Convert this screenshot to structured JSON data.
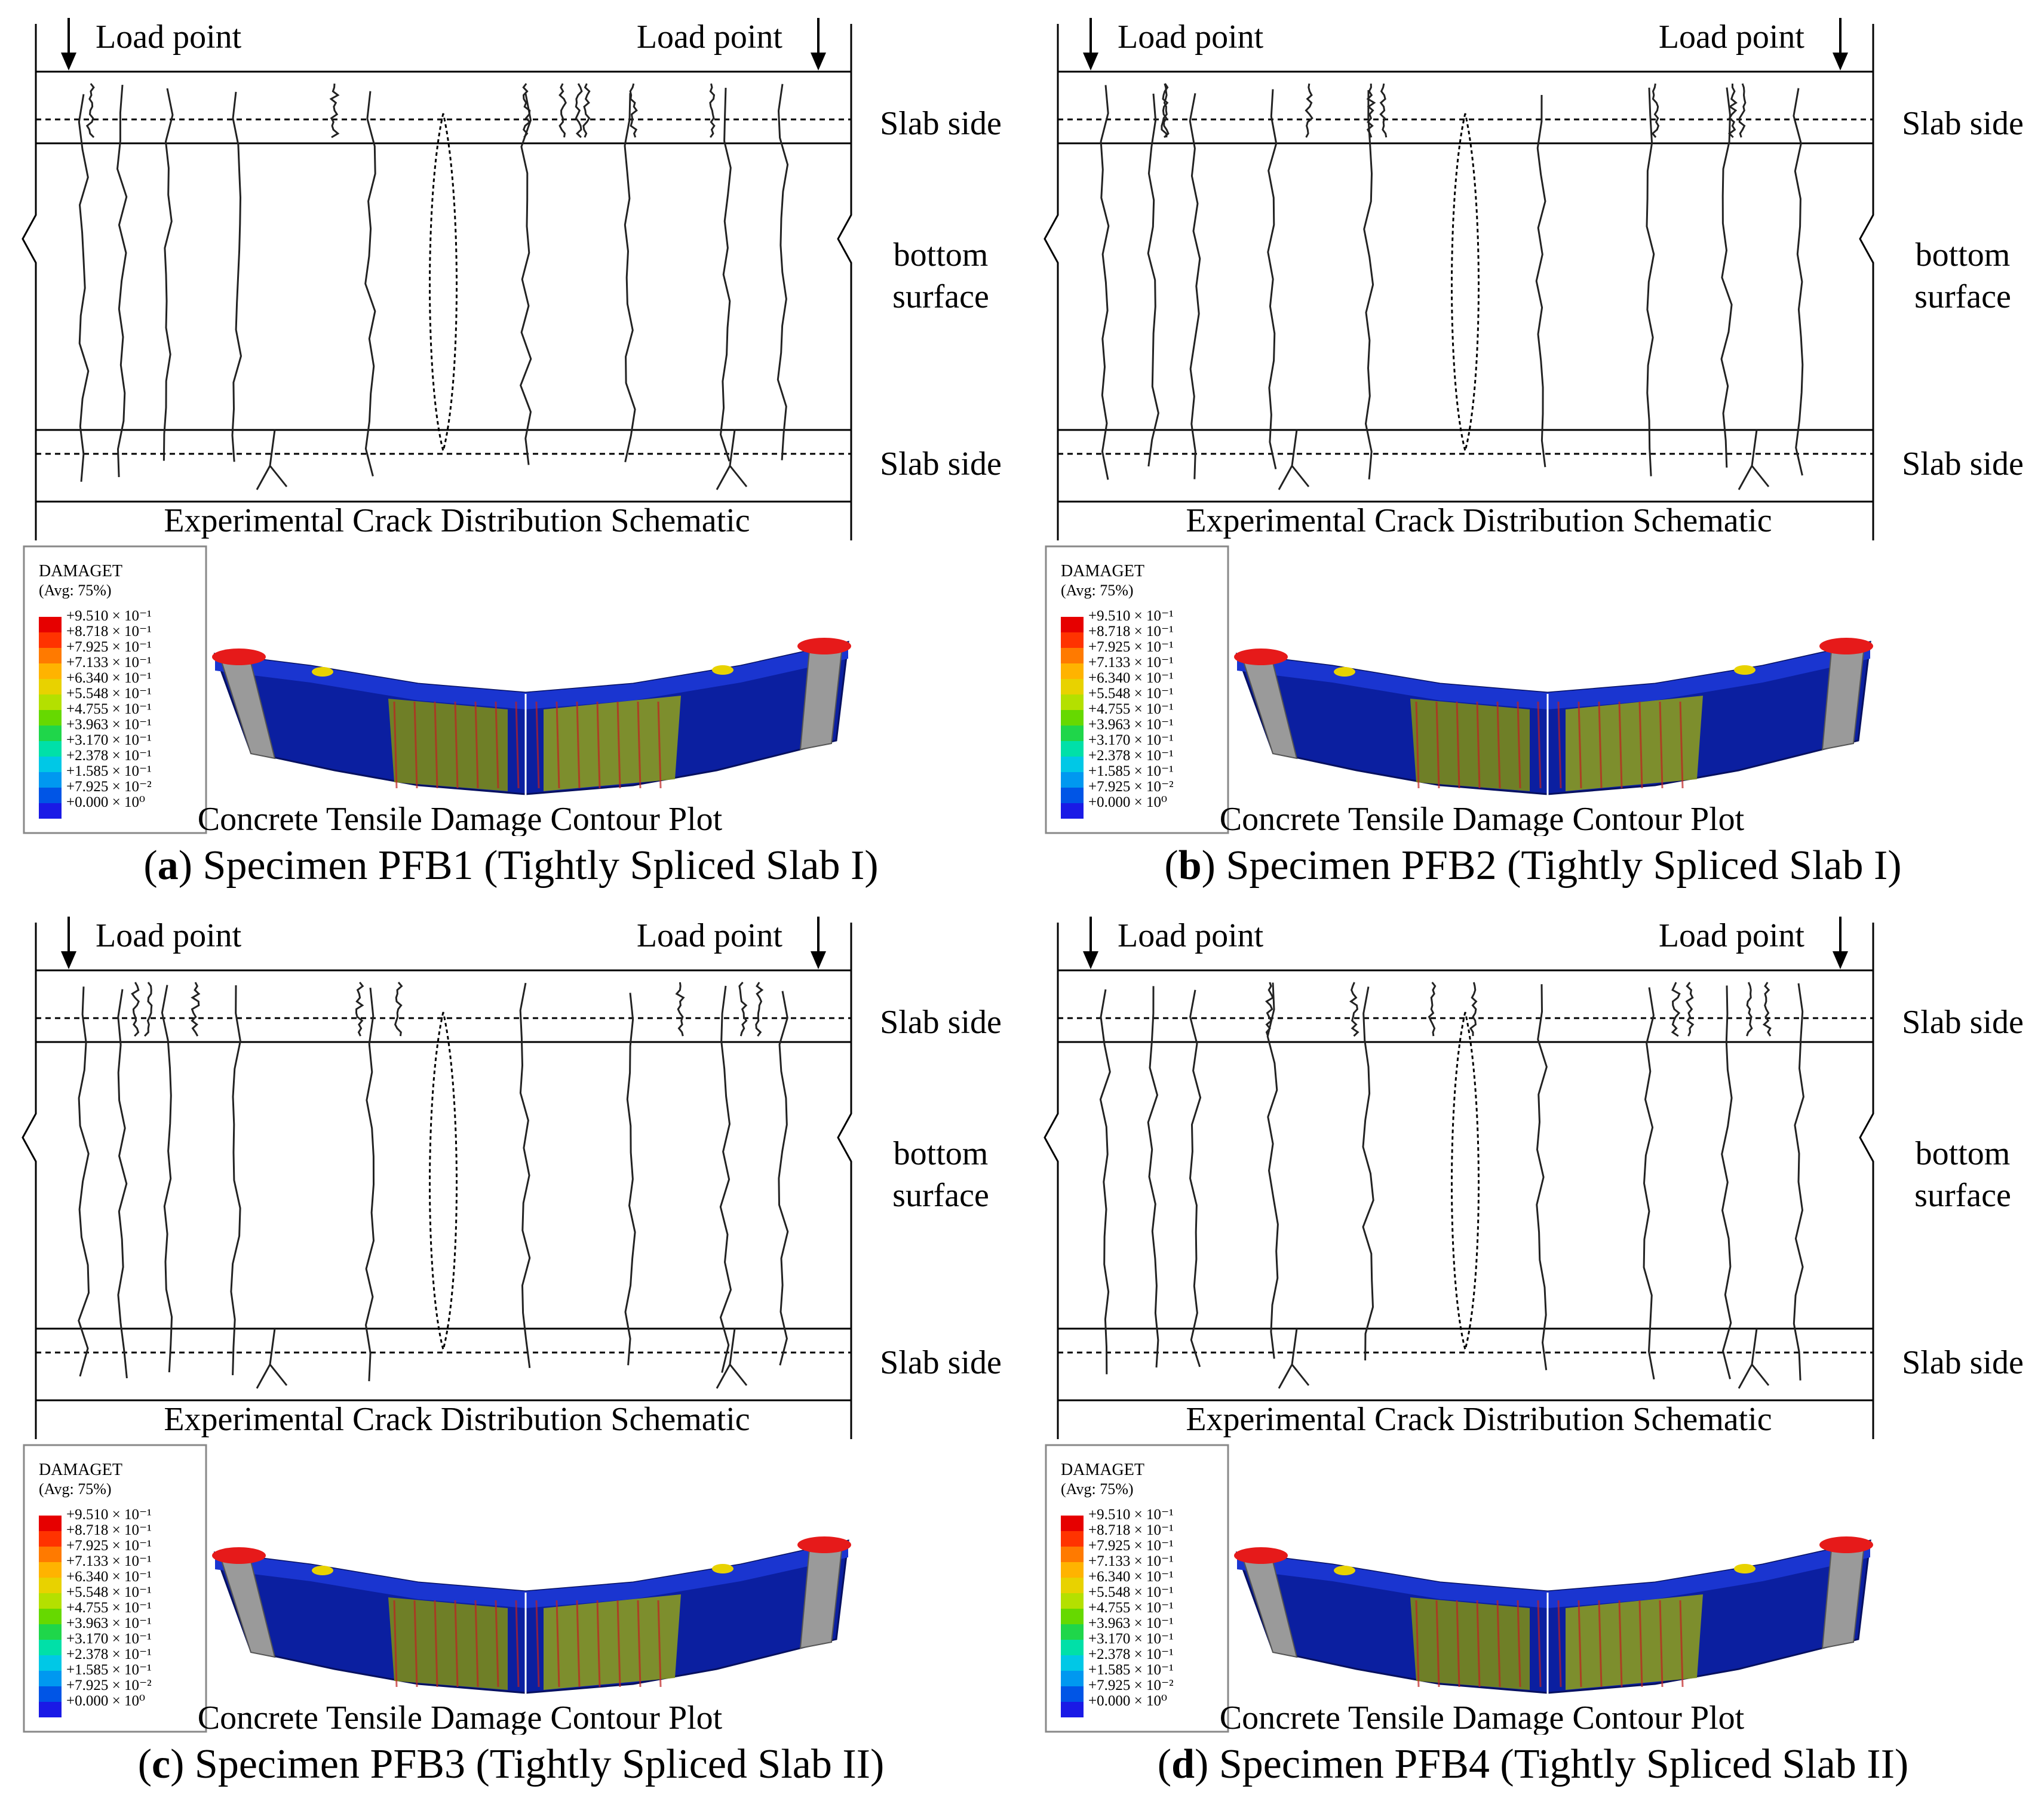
{
  "labels": {
    "load_point": "Load point",
    "slab_side": "Slab side",
    "bottom": "bottom",
    "surface": "surface",
    "schematic_title": "Experimental Crack Distribution Schematic",
    "contour_title": "Concrete Tensile Damage Contour Plot"
  },
  "legend": {
    "title": "DAMAGET",
    "avg": "(Avg: 75%)",
    "values": [
      "+9.510 × 10⁻¹",
      "+8.718 × 10⁻¹",
      "+7.925 × 10⁻¹",
      "+7.133 × 10⁻¹",
      "+6.340 × 10⁻¹",
      "+5.548 × 10⁻¹",
      "+4.755 × 10⁻¹",
      "+3.963 × 10⁻¹",
      "+3.170 × 10⁻¹",
      "+2.378 × 10⁻¹",
      "+1.585 × 10⁻¹",
      "+7.925 × 10⁻²",
      "+0.000 × 10⁰"
    ],
    "colors": [
      "#e60000",
      "#ff3300",
      "#ff7a00",
      "#ffb300",
      "#e8d200",
      "#b4e000",
      "#66d900",
      "#1fd64a",
      "#00e0a8",
      "#00c8e6",
      "#0098f0",
      "#0055e6",
      "#1a1ae6"
    ]
  },
  "panels": [
    {
      "letter": "a",
      "caption": " Specimen PFB1 (Tightly Spliced Slab I)"
    },
    {
      "letter": "b",
      "caption": " Specimen PFB2 (Tightly Spliced Slab I)"
    },
    {
      "letter": "c",
      "caption": " Specimen PFB3 (Tightly Spliced Slab II)"
    },
    {
      "letter": "d",
      "caption": " Specimen PFB4 (Tightly Spliced Slab II)"
    }
  ]
}
